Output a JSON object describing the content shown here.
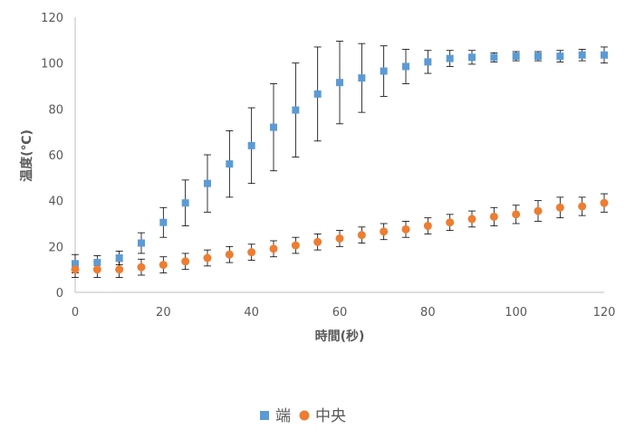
{
  "chart_data": {
    "type": "scatter",
    "title": "",
    "xlabel": "時間(秒)",
    "ylabel": "温度(℃)",
    "xlim": [
      0,
      120
    ],
    "ylim": [
      0,
      120
    ],
    "xticks": [
      0,
      20,
      40,
      60,
      80,
      100,
      120
    ],
    "yticks": [
      0,
      20,
      40,
      60,
      80,
      100,
      120
    ],
    "grid": false,
    "legend_position": "bottom",
    "series": [
      {
        "name": "端",
        "color": "#5b9bd5",
        "marker": "square",
        "x": [
          0,
          5,
          10,
          15,
          20,
          25,
          30,
          35,
          40,
          45,
          50,
          55,
          60,
          65,
          70,
          75,
          80,
          85,
          90,
          95,
          100,
          105,
          110,
          115,
          120
        ],
        "y": [
          12.5,
          13,
          15,
          21.5,
          30.5,
          39,
          47.5,
          56,
          64,
          72,
          79.5,
          86.5,
          91.5,
          93.5,
          96.5,
          98.5,
          100.5,
          102,
          102.5,
          102.5,
          103,
          103,
          103,
          103.5,
          103.5
        ],
        "error": [
          4,
          3,
          3,
          4.5,
          6.5,
          10,
          12.5,
          14.5,
          16.5,
          19,
          20.5,
          20.5,
          18,
          15,
          11,
          7.5,
          5,
          3.5,
          3,
          2,
          2,
          2,
          2.5,
          2.5,
          3.5
        ]
      },
      {
        "name": "中央",
        "color": "#ed7d31",
        "marker": "circle",
        "x": [
          0,
          5,
          10,
          15,
          20,
          25,
          30,
          35,
          40,
          45,
          50,
          55,
          60,
          65,
          70,
          75,
          80,
          85,
          90,
          95,
          100,
          105,
          110,
          115,
          120
        ],
        "y": [
          10,
          10,
          10,
          11,
          12,
          13.5,
          15,
          16.5,
          17.5,
          19,
          20.5,
          22,
          23.5,
          25,
          26.5,
          27.5,
          29,
          30.5,
          32,
          33,
          34,
          35.5,
          37,
          37.5,
          39
        ],
        "error": [
          3.5,
          3.5,
          3.5,
          3.5,
          3.5,
          3.5,
          3.5,
          3.5,
          3.5,
          3.5,
          3.5,
          3.5,
          3.5,
          3.5,
          3.5,
          3.5,
          3.5,
          3.5,
          3.5,
          4,
          4,
          4.5,
          4.5,
          4,
          4
        ]
      }
    ]
  },
  "colors": {
    "axis": "#bfbfbf",
    "tick_text": "#595959",
    "error_bar": "#000000"
  }
}
